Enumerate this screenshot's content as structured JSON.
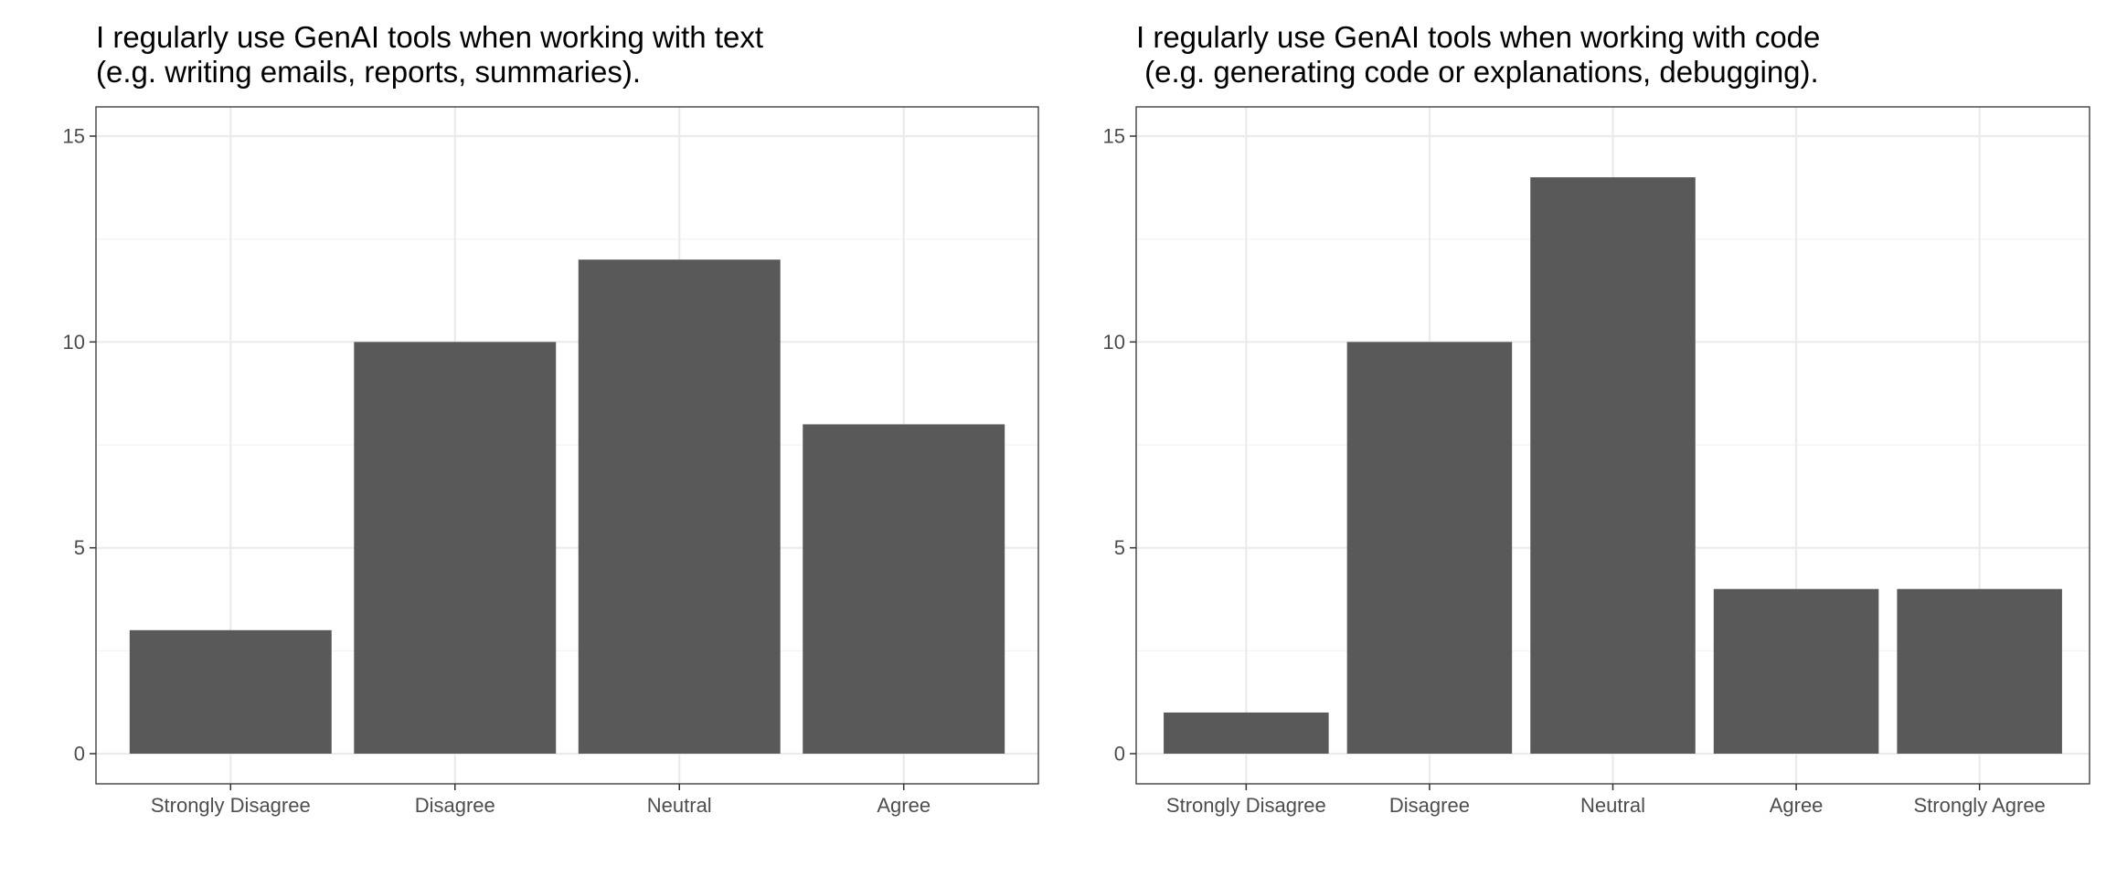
{
  "chart_data": [
    {
      "type": "bar",
      "title": "I regularly use GenAI tools when working with text\n(e.g. writing emails, reports, summaries).",
      "categories": [
        "Strongly Disagree",
        "Disagree",
        "Neutral",
        "Agree"
      ],
      "values": [
        3,
        10,
        12,
        8
      ],
      "xlabel": "",
      "ylabel": "",
      "ylim": [
        0,
        15
      ],
      "yticks": [
        "0",
        "5",
        "10",
        "15"
      ],
      "grid": true,
      "bar_color": "#595959"
    },
    {
      "type": "bar",
      "title": "I regularly use GenAI tools when working with code\n (e.g. generating code or explanations, debugging).",
      "categories": [
        "Strongly Disagree",
        "Disagree",
        "Neutral",
        "Agree",
        "Strongly Agree"
      ],
      "values": [
        1,
        10,
        14,
        4,
        4
      ],
      "xlabel": "",
      "ylabel": "",
      "ylim": [
        0,
        15
      ],
      "yticks": [
        "0",
        "5",
        "10",
        "15"
      ],
      "grid": true,
      "bar_color": "#595959"
    }
  ]
}
